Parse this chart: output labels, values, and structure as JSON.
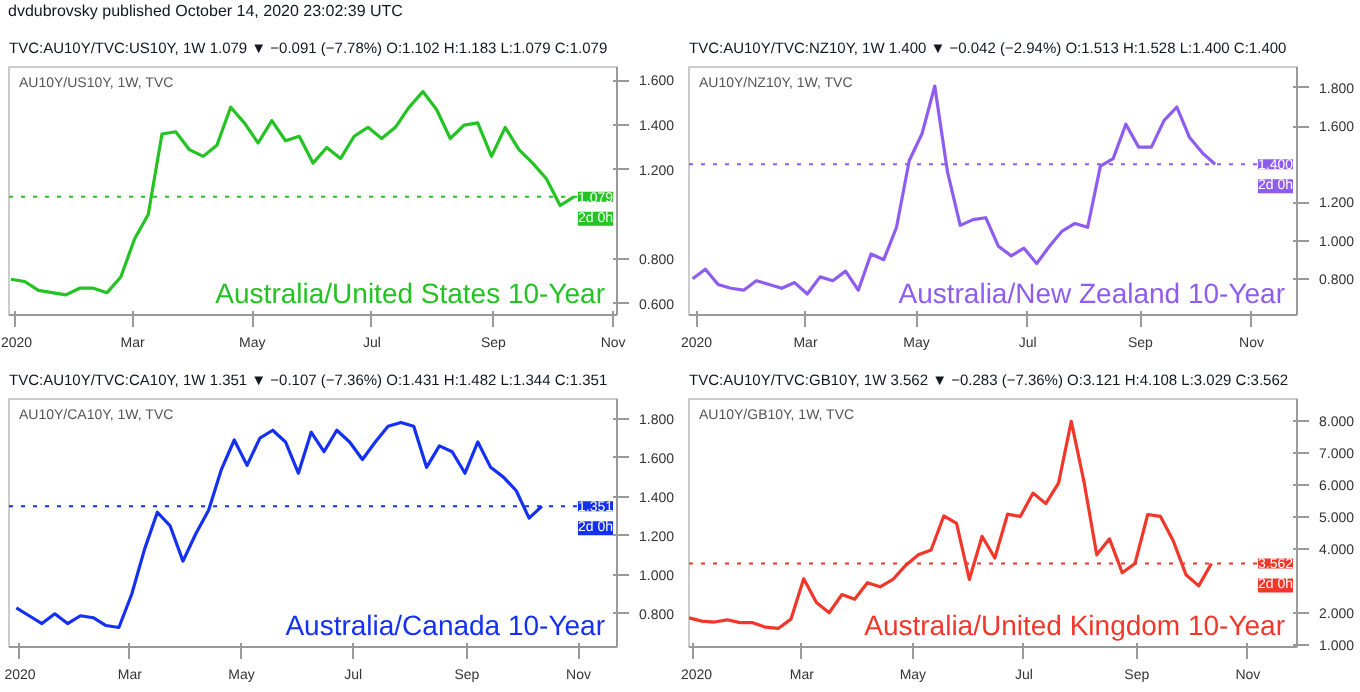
{
  "chart_data": [
    {
      "type": "line",
      "title": "TVC:AU10Y/TVC:US10Y, 1W 1.079 ▼ −0.091 (−7.78%) O:1.102 H:1.183 L:1.079 C:1.079",
      "subtitle": "AU10Y/US10Y, 1W, TVC",
      "x": [
        "2019-12-30",
        "2020-01-06",
        "2020-01-13",
        "2020-01-20",
        "2020-01-27",
        "2020-02-03",
        "2020-02-10",
        "2020-02-17",
        "2020-02-24",
        "2020-03-02",
        "2020-03-09",
        "2020-03-16",
        "2020-03-23",
        "2020-03-30",
        "2020-04-06",
        "2020-04-13",
        "2020-04-20",
        "2020-04-27",
        "2020-05-04",
        "2020-05-11",
        "2020-05-18",
        "2020-05-25",
        "2020-06-01",
        "2020-06-08",
        "2020-06-15",
        "2020-06-22",
        "2020-06-29",
        "2020-07-06",
        "2020-07-13",
        "2020-07-20",
        "2020-07-27",
        "2020-08-03",
        "2020-08-10",
        "2020-08-17",
        "2020-08-24",
        "2020-08-31",
        "2020-09-07",
        "2020-09-14",
        "2020-09-21",
        "2020-09-28",
        "2020-10-05",
        "2020-10-12"
      ],
      "series": [
        {
          "color": "#22c322",
          "values": [
            0.71,
            0.7,
            0.66,
            0.65,
            0.64,
            0.67,
            0.67,
            0.65,
            0.72,
            0.89,
            1.0,
            1.36,
            1.37,
            1.29,
            1.26,
            1.31,
            1.48,
            1.41,
            1.32,
            1.42,
            1.33,
            1.35,
            1.23,
            1.3,
            1.25,
            1.35,
            1.39,
            1.34,
            1.39,
            1.48,
            1.55,
            1.47,
            1.34,
            1.4,
            1.41,
            1.26,
            1.39,
            1.29,
            1.23,
            1.16,
            1.04,
            1.079
          ]
        }
      ],
      "xlim": [
        "2019-12-29",
        "2020-11-03"
      ],
      "xticks": [
        {
          "value": "2020-01-01",
          "label": "2020"
        },
        {
          "value": "2020-03-01",
          "label": "Mar"
        },
        {
          "value": "2020-05-01",
          "label": "May"
        },
        {
          "value": "2020-07-01",
          "label": "Jul"
        },
        {
          "value": "2020-09-01",
          "label": "Sep"
        },
        {
          "value": "2020-11-01",
          "label": "Nov"
        }
      ],
      "ylim": [
        0.55,
        1.66
      ],
      "yticks": [
        {
          "value": 0.6,
          "label": "0.600"
        },
        {
          "value": 0.8,
          "label": "0.800"
        },
        {
          "value": 1.2,
          "label": "1.200"
        },
        {
          "value": 1.4,
          "label": "1.400"
        },
        {
          "value": 1.6,
          "label": "1.600"
        }
      ],
      "ref_lines": [
        {
          "axis": "y",
          "value": 1.079,
          "label": "1.079",
          "color": "#22c322",
          "line_style": "dotted"
        }
      ],
      "annotations": [
        "Australia/United States 10-Year",
        "2d 0h",
        "dvdubrovsky published October 14, 2020 23:02:39 UTC"
      ],
      "grid": false,
      "line_style": "solid"
    },
    {
      "type": "line",
      "title": "TVC:AU10Y/TVC:NZ10Y, 1W 1.400 ▼ −0.042 (−2.94%) O:1.513 H:1.528 L:1.400 C:1.400",
      "subtitle": "AU10Y/NZ10Y, 1W, TVC",
      "x": [
        "2019-12-30",
        "2020-01-06",
        "2020-01-13",
        "2020-01-20",
        "2020-01-27",
        "2020-02-03",
        "2020-02-10",
        "2020-02-17",
        "2020-02-24",
        "2020-03-02",
        "2020-03-09",
        "2020-03-16",
        "2020-03-23",
        "2020-03-30",
        "2020-04-06",
        "2020-04-13",
        "2020-04-20",
        "2020-04-27",
        "2020-05-04",
        "2020-05-11",
        "2020-05-18",
        "2020-05-25",
        "2020-06-01",
        "2020-06-08",
        "2020-06-15",
        "2020-06-22",
        "2020-06-29",
        "2020-07-06",
        "2020-07-13",
        "2020-07-20",
        "2020-07-27",
        "2020-08-03",
        "2020-08-10",
        "2020-08-17",
        "2020-08-24",
        "2020-08-31",
        "2020-09-07",
        "2020-09-14",
        "2020-09-21",
        "2020-09-28",
        "2020-10-05",
        "2020-10-12"
      ],
      "series": [
        {
          "color": "#8f5cf0",
          "values": [
            0.8,
            0.85,
            0.77,
            0.75,
            0.74,
            0.79,
            0.77,
            0.75,
            0.78,
            0.72,
            0.81,
            0.79,
            0.84,
            0.74,
            0.93,
            0.9,
            1.07,
            1.42,
            1.56,
            1.81,
            1.36,
            1.08,
            1.11,
            1.12,
            0.97,
            0.92,
            0.96,
            0.88,
            0.97,
            1.05,
            1.09,
            1.07,
            1.39,
            1.43,
            1.61,
            1.49,
            1.49,
            1.63,
            1.7,
            1.54,
            1.46,
            1.4
          ]
        }
      ],
      "xlim": [
        "2019-12-28",
        "2020-11-26"
      ],
      "xticks": [
        {
          "value": "2020-01-01",
          "label": "2020"
        },
        {
          "value": "2020-03-01",
          "label": "Mar"
        },
        {
          "value": "2020-05-01",
          "label": "May"
        },
        {
          "value": "2020-07-01",
          "label": "Jul"
        },
        {
          "value": "2020-09-01",
          "label": "Sep"
        },
        {
          "value": "2020-11-01",
          "label": "Nov"
        }
      ],
      "ylim": [
        0.61,
        1.91
      ],
      "yticks": [
        {
          "value": 0.8,
          "label": "0.800"
        },
        {
          "value": 1.0,
          "label": "1.000"
        },
        {
          "value": 1.2,
          "label": "1.200"
        },
        {
          "value": 1.6,
          "label": "1.600"
        },
        {
          "value": 1.8,
          "label": "1.800"
        }
      ],
      "ref_lines": [
        {
          "axis": "y",
          "value": 1.4,
          "label": "1.400",
          "color": "#8f5cf0",
          "line_style": "dotted"
        }
      ],
      "annotations": [
        "Australia/New Zealand 10-Year",
        "2d 0h"
      ],
      "grid": false,
      "line_style": "solid"
    },
    {
      "type": "line",
      "title": "TVC:AU10Y/TVC:CA10Y, 1W 1.351 ▼ −0.107 (−7.36%) O:1.431 H:1.482 L:1.344 C:1.351",
      "subtitle": "AU10Y/CA10Y, 1W, TVC",
      "x": [
        "2019-12-30",
        "2020-01-06",
        "2020-01-13",
        "2020-01-20",
        "2020-01-27",
        "2020-02-03",
        "2020-02-10",
        "2020-02-17",
        "2020-02-24",
        "2020-03-02",
        "2020-03-09",
        "2020-03-16",
        "2020-03-23",
        "2020-03-30",
        "2020-04-06",
        "2020-04-13",
        "2020-04-20",
        "2020-04-27",
        "2020-05-04",
        "2020-05-11",
        "2020-05-18",
        "2020-05-25",
        "2020-06-01",
        "2020-06-08",
        "2020-06-15",
        "2020-06-22",
        "2020-06-29",
        "2020-07-06",
        "2020-07-13",
        "2020-07-20",
        "2020-07-27",
        "2020-08-03",
        "2020-08-10",
        "2020-08-17",
        "2020-08-24",
        "2020-08-31",
        "2020-09-07",
        "2020-09-14",
        "2020-09-21",
        "2020-09-28",
        "2020-10-05",
        "2020-10-12"
      ],
      "series": [
        {
          "color": "#1430f0",
          "values": [
            0.83,
            0.79,
            0.75,
            0.8,
            0.75,
            0.79,
            0.78,
            0.74,
            0.73,
            0.9,
            1.13,
            1.32,
            1.25,
            1.07,
            1.21,
            1.33,
            1.54,
            1.69,
            1.56,
            1.7,
            1.74,
            1.68,
            1.52,
            1.73,
            1.63,
            1.74,
            1.68,
            1.59,
            1.68,
            1.76,
            1.78,
            1.76,
            1.55,
            1.66,
            1.63,
            1.52,
            1.68,
            1.55,
            1.5,
            1.43,
            1.29,
            1.351
          ]
        }
      ],
      "xlim": [
        "2019-12-26",
        "2020-11-22"
      ],
      "xticks": [
        {
          "value": "2020-01-01",
          "label": "2020"
        },
        {
          "value": "2020-03-01",
          "label": "Mar"
        },
        {
          "value": "2020-05-01",
          "label": "May"
        },
        {
          "value": "2020-07-01",
          "label": "Jul"
        },
        {
          "value": "2020-09-01",
          "label": "Sep"
        },
        {
          "value": "2020-11-01",
          "label": "Nov"
        }
      ],
      "ylim": [
        0.63,
        1.9
      ],
      "yticks": [
        {
          "value": 0.8,
          "label": "0.800"
        },
        {
          "value": 1.0,
          "label": "1.000"
        },
        {
          "value": 1.2,
          "label": "1.200"
        },
        {
          "value": 1.4,
          "label": "1.400"
        },
        {
          "value": 1.6,
          "label": "1.600"
        },
        {
          "value": 1.8,
          "label": "1.800"
        }
      ],
      "ref_lines": [
        {
          "axis": "y",
          "value": 1.351,
          "label": "1.351",
          "color": "#1430f0",
          "line_style": "dotted"
        }
      ],
      "annotations": [
        "Australia/Canada 10-Year",
        "2d 0h"
      ],
      "grid": false,
      "line_style": "solid"
    },
    {
      "type": "line",
      "title": "TVC:AU10Y/TVC:GB10Y, 1W 3.562 ▼ −0.283 (−7.36%) O:3.121 H:4.108 L:3.029 C:3.562",
      "subtitle": "AU10Y/GB10Y, 1W, TVC",
      "x": [
        "2019-12-30",
        "2020-01-06",
        "2020-01-13",
        "2020-01-20",
        "2020-01-27",
        "2020-02-03",
        "2020-02-10",
        "2020-02-17",
        "2020-02-24",
        "2020-03-02",
        "2020-03-09",
        "2020-03-16",
        "2020-03-23",
        "2020-03-30",
        "2020-04-06",
        "2020-04-13",
        "2020-04-20",
        "2020-04-27",
        "2020-05-04",
        "2020-05-11",
        "2020-05-18",
        "2020-05-25",
        "2020-06-01",
        "2020-06-08",
        "2020-06-15",
        "2020-06-22",
        "2020-06-29",
        "2020-07-06",
        "2020-07-13",
        "2020-07-20",
        "2020-07-27",
        "2020-08-03",
        "2020-08-10",
        "2020-08-17",
        "2020-08-24",
        "2020-08-31",
        "2020-09-07",
        "2020-09-14",
        "2020-09-21",
        "2020-09-28",
        "2020-10-05",
        "2020-10-12"
      ],
      "series": [
        {
          "color": "#f2362a",
          "values": [
            1.86,
            1.76,
            1.73,
            1.8,
            1.71,
            1.71,
            1.57,
            1.53,
            1.82,
            3.08,
            2.34,
            2.02,
            2.59,
            2.44,
            2.96,
            2.83,
            3.06,
            3.5,
            3.83,
            3.98,
            5.05,
            4.81,
            3.06,
            4.41,
            3.73,
            5.1,
            5.03,
            5.76,
            5.43,
            6.07,
            8.0,
            6.11,
            3.83,
            4.33,
            3.27,
            3.56,
            5.09,
            5.03,
            4.27,
            3.21,
            2.86,
            3.562
          ]
        }
      ],
      "xlim": [
        "2019-12-30",
        "2020-11-28"
      ],
      "xticks": [
        {
          "value": "2020-01-01",
          "label": "2020"
        },
        {
          "value": "2020-03-01",
          "label": "Mar"
        },
        {
          "value": "2020-05-01",
          "label": "May"
        },
        {
          "value": "2020-07-01",
          "label": "Jul"
        },
        {
          "value": "2020-09-01",
          "label": "Sep"
        },
        {
          "value": "2020-11-01",
          "label": "Nov"
        }
      ],
      "ylim": [
        0.95,
        8.7
      ],
      "yticks": [
        {
          "value": 1,
          "label": "1.000"
        },
        {
          "value": 2,
          "label": "2.000"
        },
        {
          "value": 4,
          "label": "4.000"
        },
        {
          "value": 5,
          "label": "5.000"
        },
        {
          "value": 6,
          "label": "6.000"
        },
        {
          "value": 7,
          "label": "7.000"
        },
        {
          "value": 8,
          "label": "8.000"
        }
      ],
      "ref_lines": [
        {
          "axis": "y",
          "value": 3.562,
          "label": "3.562",
          "color": "#f2362a",
          "line_style": "dotted"
        }
      ],
      "annotations": [
        "Australia/United Kingdom 10-Year",
        "2d 0h"
      ],
      "grid": false,
      "line_style": "solid"
    }
  ]
}
